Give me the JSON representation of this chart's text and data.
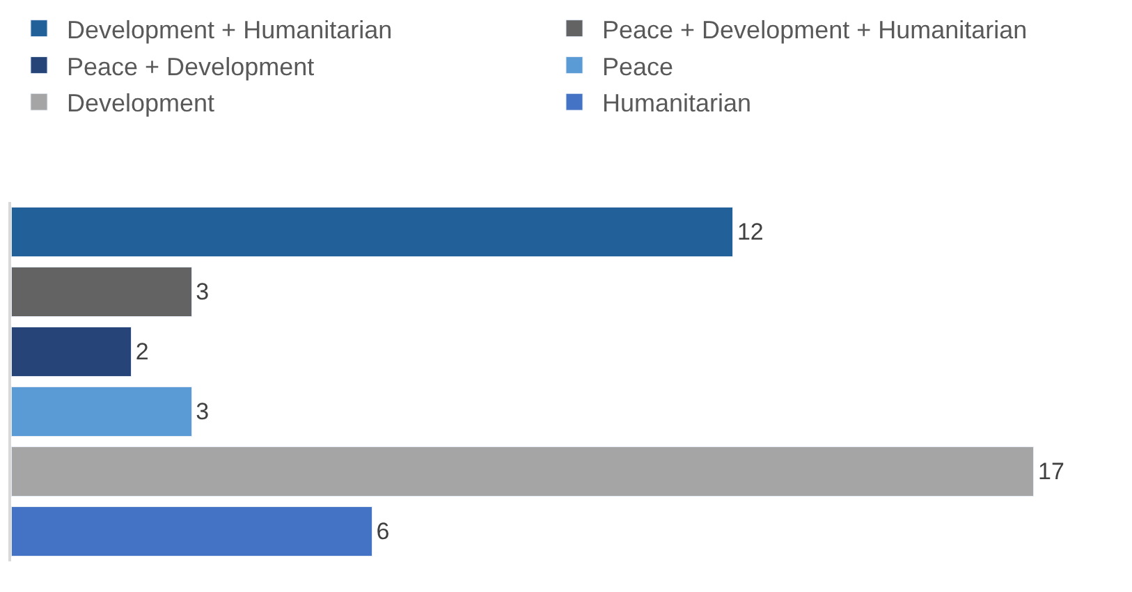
{
  "chart_data": {
    "type": "bar",
    "orientation": "horizontal",
    "stacked": true,
    "categories": [
      null,
      null,
      null,
      null,
      null,
      null
    ],
    "series": [
      {
        "name": "Development + Humanitarian",
        "color": "#22609a",
        "values": [
          12,
          null,
          null,
          null,
          null,
          null
        ]
      },
      {
        "name": "Peace + Development + Humanitarian",
        "color": "#636363",
        "values": [
          null,
          3,
          null,
          null,
          null,
          null
        ]
      },
      {
        "name": "Peace + Development",
        "color": "#264478",
        "values": [
          null,
          null,
          2,
          null,
          null,
          null
        ]
      },
      {
        "name": "Peace",
        "color": "#5b9bd5",
        "values": [
          null,
          null,
          null,
          3,
          null,
          null
        ]
      },
      {
        "name": "Development",
        "color": "#a5a5a5",
        "values": [
          null,
          null,
          null,
          null,
          17,
          null
        ]
      },
      {
        "name": "Humanitarian",
        "color": "#4472c4",
        "values": [
          null,
          null,
          null,
          null,
          null,
          6
        ]
      }
    ],
    "data_labels": true,
    "legend": "top",
    "tick_labels": false
  }
}
